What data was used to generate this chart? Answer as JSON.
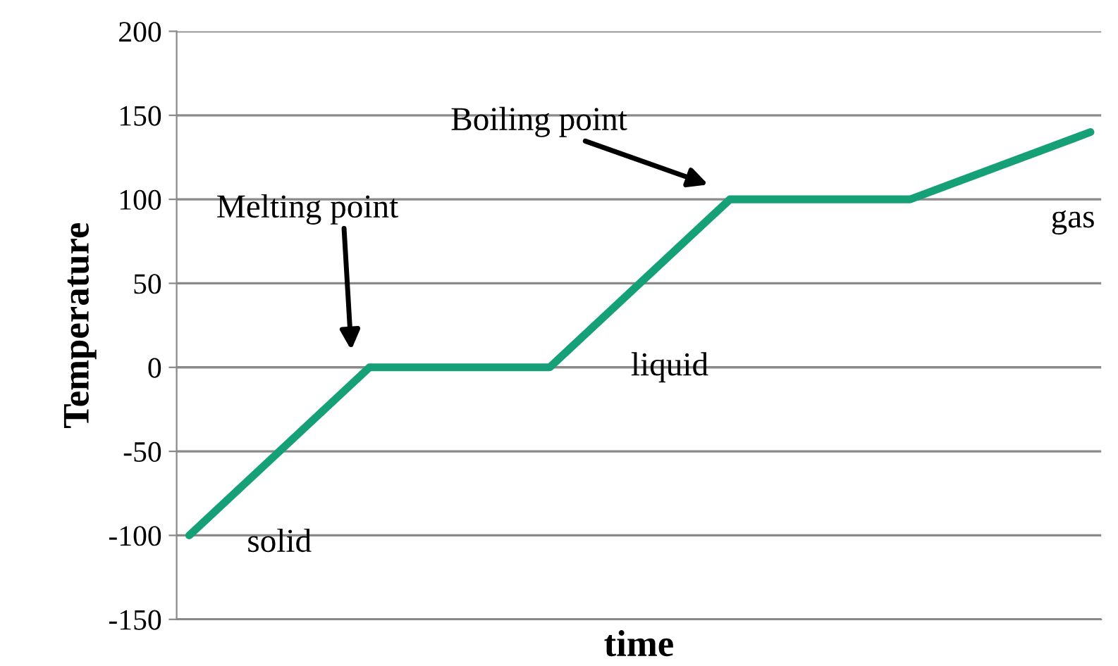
{
  "chart_data": {
    "type": "line",
    "xlabel": "time",
    "ylabel": "Temperature",
    "categories": [
      null,
      null,
      null,
      null,
      null,
      null
    ],
    "series": [
      {
        "color": "#16a077",
        "values": [
          -100,
          0,
          0,
          100,
          100,
          140
        ]
      }
    ],
    "ylim": [
      -150,
      200
    ],
    "yticks": [
      -150,
      -100,
      -50,
      0,
      50,
      100,
      150,
      200
    ],
    "grid": "y",
    "marker": "none",
    "line_style": "solid",
    "annotations": [
      "Melting point",
      "Boiling point",
      "solid",
      "liquid",
      "gas"
    ]
  }
}
